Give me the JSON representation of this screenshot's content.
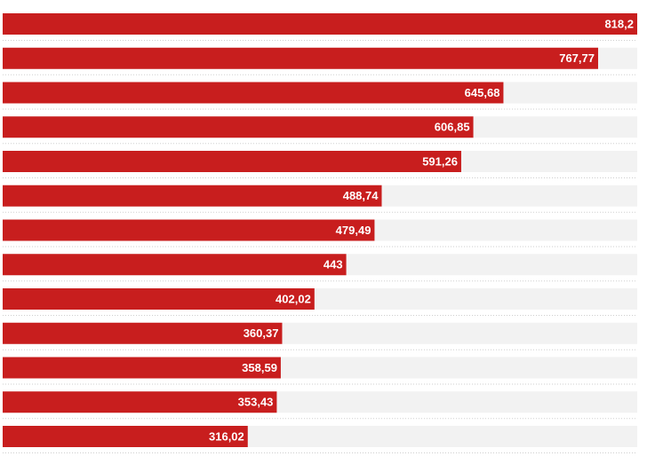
{
  "chart_data": {
    "type": "barh",
    "categories": [
      null,
      null,
      null,
      null,
      null,
      null,
      null,
      null,
      null,
      null,
      null,
      null,
      null
    ],
    "values": [
      818.2,
      767.77,
      645.68,
      606.85,
      591.26,
      488.74,
      479.49,
      443,
      402.02,
      360.37,
      358.59,
      353.43,
      316.02
    ],
    "value_labels": [
      "818,2",
      "767,77",
      "645,68",
      "606,85",
      "591,26",
      "488,74",
      "479,49",
      "443",
      "402,02",
      "360,37",
      "358,59",
      "353,43",
      "316,02"
    ],
    "color": "#c81e1e",
    "xlim": [
      0,
      818.2
    ]
  }
}
